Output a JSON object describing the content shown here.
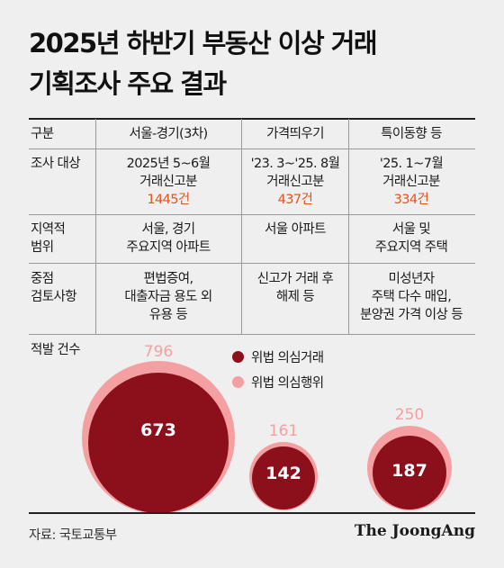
{
  "title": {
    "line1": "2025년 하반기 부동산 이상 거래",
    "line2": "기획조사 주요 결과"
  },
  "header": {
    "col0": "구분",
    "col1": "서울-경기(3차)",
    "col2": "가격띄우기",
    "col3": "특이동향 등"
  },
  "rows": {
    "target": {
      "label": "조사 대상",
      "col1": {
        "period": "2025년 5~6월",
        "sub": "거래신고분",
        "count": "1445건"
      },
      "col2": {
        "period": "'23. 3~'25. 8월",
        "sub": "거래신고분",
        "count": "437건"
      },
      "col3": {
        "period": "'25. 1~7월",
        "sub": "거래신고분",
        "count": "334건"
      }
    },
    "region": {
      "label1": "지역적",
      "label2": "범위",
      "col1_l1": "서울, 경기",
      "col1_l2": "주요지역 아파트",
      "col2_l1": "서울 아파트",
      "col3_l1": "서울 및",
      "col3_l2": "주요지역 주택"
    },
    "focus": {
      "label1": "중점",
      "label2": "검토사항",
      "col1_l1": "편법증여,",
      "col1_l2": "대출자금 용도 외",
      "col1_l3": "유용 등",
      "col2_l1": "신고가 거래 후",
      "col2_l2": "해제 등",
      "col3_l1": "미성년자",
      "col3_l2": "주택 다수 매입,",
      "col3_l3": "분양권 가격 이상 등"
    },
    "detection": {
      "label": "적발 건수"
    }
  },
  "legend": {
    "suspected_transactions": "위법 의심거래",
    "suspected_acts": "위법 의심행위"
  },
  "circles": [
    {
      "group": "서울-경기(3차)",
      "transactions": 673,
      "acts": 796
    },
    {
      "group": "가격띄우기",
      "transactions": 142,
      "acts": 161
    },
    {
      "group": "특이동향 등",
      "transactions": 187,
      "acts": 250
    }
  ],
  "circle_labels": {
    "c1_outer": "796",
    "c1_inner": "673",
    "c2_outer": "161",
    "c2_inner": "142",
    "c3_outer": "250",
    "c3_inner": "187"
  },
  "colors": {
    "dark_red": "#8c0f1c",
    "light_pink": "#f4a0a2",
    "highlight_orange": "#e2541e",
    "background": "#efefef"
  },
  "source": "자료: 국토교통부",
  "brand": "The JoongAng"
}
